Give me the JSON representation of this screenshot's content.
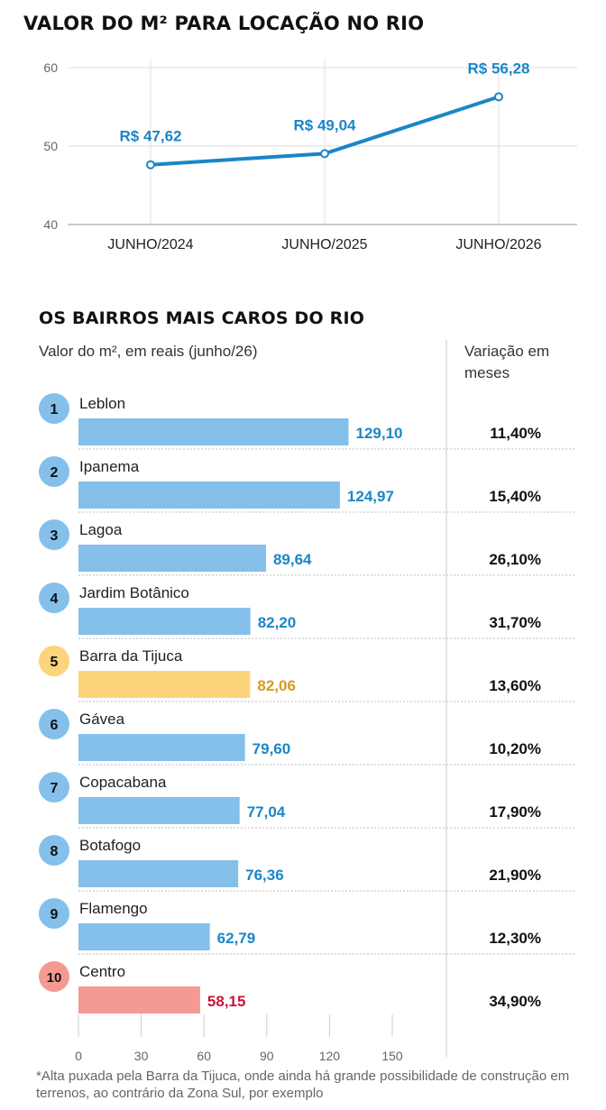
{
  "chart_data": [
    {
      "type": "line",
      "title": "VALOR DO M² PARA LOCAÇÃO NO RIO",
      "categories": [
        "JUNHO/2024",
        "JUNHO/2025",
        "JUNHO/2026"
      ],
      "values": [
        47.62,
        49.04,
        56.28
      ],
      "data_labels": [
        "R$ 47,62",
        "R$ 49,04",
        "R$ 56,28"
      ],
      "ylim": [
        40,
        60
      ],
      "yticks": [
        "40",
        "50",
        "60"
      ],
      "grid": true,
      "line_color": "#1a86c8"
    },
    {
      "type": "bar",
      "orientation": "horizontal",
      "title": "OS BAIRROS MAIS CAROS DO RIO",
      "subtitle": "Valor do m², em reais (junho/26)",
      "variation_header": "Variação em meses",
      "xlim": [
        0,
        150
      ],
      "xticks": [
        "0",
        "30",
        "60",
        "90",
        "120",
        "150"
      ],
      "items": [
        {
          "rank": "1",
          "name": "Leblon",
          "value": 129.1,
          "label": "129,10",
          "variation": "11,40%",
          "highlight": "blue"
        },
        {
          "rank": "2",
          "name": "Ipanema",
          "value": 124.97,
          "label": "124,97",
          "variation": "15,40%",
          "highlight": "blue"
        },
        {
          "rank": "3",
          "name": "Lagoa",
          "value": 89.64,
          "label": "89,64",
          "variation": "26,10%",
          "highlight": "blue"
        },
        {
          "rank": "4",
          "name": "Jardim Botânico",
          "value": 82.2,
          "label": "82,20",
          "variation": "31,70%",
          "highlight": "blue"
        },
        {
          "rank": "5",
          "name": "Barra da Tijuca",
          "value": 82.06,
          "label": "82,06",
          "variation": "13,60%",
          "highlight": "yellow"
        },
        {
          "rank": "6",
          "name": "Gávea",
          "value": 79.6,
          "label": "79,60",
          "variation": "10,20%",
          "highlight": "blue"
        },
        {
          "rank": "7",
          "name": "Copacabana",
          "value": 77.04,
          "label": "77,04",
          "variation": "17,90%",
          "highlight": "blue"
        },
        {
          "rank": "8",
          "name": "Botafogo",
          "value": 76.36,
          "label": "76,36",
          "variation": "21,90%",
          "highlight": "blue"
        },
        {
          "rank": "9",
          "name": "Flamengo",
          "value": 62.79,
          "label": "62,79",
          "variation": "12,30%",
          "highlight": "blue"
        },
        {
          "rank": "10",
          "name": "Centro",
          "value": 58.15,
          "label": "58,15",
          "variation": "34,90%",
          "highlight": "red"
        }
      ],
      "colors": {
        "blue": {
          "bar": "#85c0eb",
          "circle": "#85c0eb",
          "text": "#1a86c8"
        },
        "yellow": {
          "bar": "#fcd47c",
          "circle": "#fcd47c",
          "text": "#d99a1a"
        },
        "red": {
          "bar": "#f49a92",
          "circle": "#f49a92",
          "text": "#c8143c"
        }
      }
    }
  ],
  "footnote": "*Alta puxada pela Barra da Tijuca, onde ainda há grande possibilidade de construção em terrenos, ao contrário da Zona Sul, por exemplo"
}
